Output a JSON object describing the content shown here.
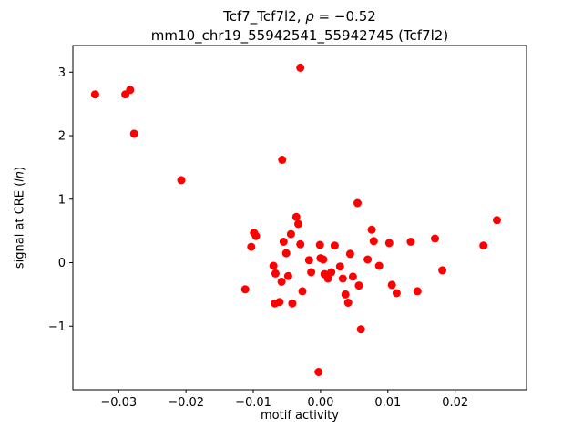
{
  "title": {
    "part1": "Tcf7_Tcf7l2, ",
    "rho": "ρ",
    "part2": " = −0.52",
    "line2": "mm10_chr19_55942541_55942745 (Tcf7l2)"
  },
  "axes": {
    "xlabel": "motif activity",
    "ylabel_part1": "signal at CRE (",
    "ylabel_italic": "ln",
    "ylabel_part2": ")"
  },
  "chart_data": {
    "type": "scatter",
    "title": "Tcf7_Tcf7l2, ρ = −0.52\nmm10_chr19_55942541_55942745 (Tcf7l2)",
    "xlabel": "motif activity",
    "ylabel": "signal at CRE (ln)",
    "legend": "none",
    "grid": false,
    "marker_color": "#ff0000",
    "marker_radius_px": 4.5,
    "xlim": [
      -0.0368,
      0.0306
    ],
    "ylim": [
      -2.0,
      3.42
    ],
    "xticks": {
      "values": [
        -0.03,
        -0.02,
        -0.01,
        0.0,
        0.01,
        0.02
      ],
      "labels": [
        "−0.03",
        "−0.02",
        "−0.01",
        "0.00",
        "0.01",
        "0.02"
      ]
    },
    "yticks": {
      "values": [
        -1,
        0,
        1,
        2,
        3
      ],
      "labels": [
        "−1",
        "0",
        "1",
        "2",
        "3"
      ]
    },
    "points": [
      [
        -0.0335,
        2.65
      ],
      [
        -0.029,
        2.65
      ],
      [
        -0.0283,
        2.72
      ],
      [
        -0.0277,
        2.03
      ],
      [
        -0.0207,
        1.3
      ],
      [
        -0.0057,
        1.62
      ],
      [
        -0.003,
        3.07
      ],
      [
        -0.0112,
        -0.42
      ],
      [
        -0.0103,
        0.25
      ],
      [
        -0.0099,
        0.47
      ],
      [
        -0.0096,
        0.42
      ],
      [
        -0.007,
        -0.05
      ],
      [
        -0.0068,
        -0.64
      ],
      [
        -0.0067,
        -0.17
      ],
      [
        -0.0061,
        -0.62
      ],
      [
        -0.0058,
        -0.3
      ],
      [
        -0.0055,
        0.33
      ],
      [
        -0.0051,
        0.15
      ],
      [
        -0.0048,
        -0.21
      ],
      [
        -0.0044,
        0.45
      ],
      [
        -0.0042,
        -0.64
      ],
      [
        -0.0036,
        0.72
      ],
      [
        -0.0033,
        0.61
      ],
      [
        -0.003,
        0.29
      ],
      [
        -0.0027,
        -0.45
      ],
      [
        -0.0017,
        0.04
      ],
      [
        -0.0014,
        -0.15
      ],
      [
        -0.0003,
        -1.72
      ],
      [
        -0.0001,
        0.28
      ],
      [
        0.0,
        0.07
      ],
      [
        0.0004,
        0.05
      ],
      [
        0.0006,
        -0.18
      ],
      [
        0.0011,
        -0.25
      ],
      [
        0.0016,
        -0.15
      ],
      [
        0.0021,
        0.27
      ],
      [
        0.0029,
        -0.06
      ],
      [
        0.0033,
        -0.25
      ],
      [
        0.0037,
        -0.5
      ],
      [
        0.0041,
        -0.63
      ],
      [
        0.0044,
        0.14
      ],
      [
        0.0048,
        -0.22
      ],
      [
        0.0055,
        0.94
      ],
      [
        0.0057,
        -0.36
      ],
      [
        0.006,
        -1.05
      ],
      [
        0.007,
        0.05
      ],
      [
        0.0076,
        0.52
      ],
      [
        0.0079,
        0.34
      ],
      [
        0.0087,
        -0.05
      ],
      [
        0.0102,
        0.31
      ],
      [
        0.0106,
        -0.35
      ],
      [
        0.0113,
        -0.48
      ],
      [
        0.0134,
        0.33
      ],
      [
        0.0144,
        -0.45
      ],
      [
        0.017,
        0.38
      ],
      [
        0.0181,
        -0.12
      ],
      [
        0.0242,
        0.27
      ],
      [
        0.0262,
        0.67
      ]
    ]
  }
}
